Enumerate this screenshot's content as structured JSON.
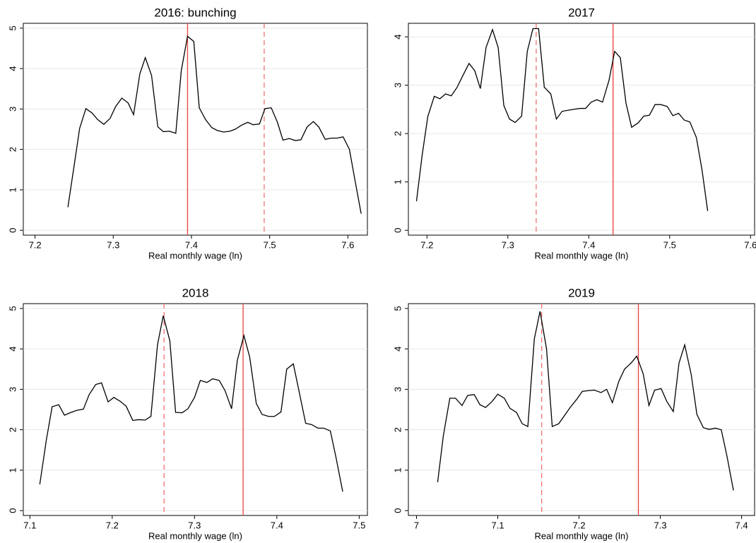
{
  "chart_data": [
    {
      "type": "line",
      "title": "2016: bunching",
      "x_label": "Real monthly wage (ln)",
      "xlim": [
        7.185,
        7.625
      ],
      "xticks": [
        7.2,
        7.3,
        7.4,
        7.5,
        7.6
      ],
      "ylim": [
        -0.12,
        5.12
      ],
      "yticks": [
        0,
        1,
        2,
        3,
        4,
        5
      ],
      "grid": true,
      "series": [
        {
          "color": "#000000",
          "x": [
            7.242,
            7.25,
            7.257,
            7.265,
            7.273,
            7.28,
            7.288,
            7.296,
            7.303,
            7.311,
            7.319,
            7.326,
            7.334,
            7.341,
            7.349,
            7.357,
            7.364,
            7.372,
            7.38,
            7.387,
            7.395,
            7.403,
            7.41,
            7.418,
            7.426,
            7.433,
            7.441,
            7.449,
            7.456,
            7.464,
            7.472,
            7.479,
            7.487,
            7.494,
            7.502,
            7.51,
            7.517,
            7.525,
            7.533,
            7.54,
            7.548,
            7.556,
            7.563,
            7.571,
            7.579,
            7.586,
            7.594,
            7.602,
            7.609,
            7.617
          ],
          "values": [
            0.57,
            1.6,
            2.52,
            3.01,
            2.9,
            2.74,
            2.62,
            2.77,
            3.06,
            3.27,
            3.15,
            2.86,
            3.87,
            4.27,
            3.83,
            2.56,
            2.44,
            2.45,
            2.4,
            3.95,
            4.8,
            4.67,
            3.03,
            2.74,
            2.54,
            2.47,
            2.43,
            2.45,
            2.5,
            2.6,
            2.67,
            2.61,
            2.63,
            3.01,
            3.03,
            2.67,
            2.23,
            2.27,
            2.22,
            2.24,
            2.56,
            2.69,
            2.55,
            2.25,
            2.28,
            2.28,
            2.31,
            2.0,
            1.25,
            0.41
          ]
        }
      ],
      "vlines": [
        {
          "x": 7.395,
          "style": "solid",
          "color": "#e8413c"
        },
        {
          "x": 7.493,
          "style": "dashed",
          "color": "#f07070"
        }
      ]
    },
    {
      "type": "line",
      "title": "2017",
      "x_label": "Real monthly wage (ln)",
      "xlim": [
        7.177,
        7.605
      ],
      "xticks": [
        7.2,
        7.3,
        7.4,
        7.5,
        7.6
      ],
      "ylim": [
        -0.1,
        4.28
      ],
      "yticks": [
        0,
        1,
        2,
        3,
        4
      ],
      "grid": true,
      "series": [
        {
          "color": "#000000",
          "x": [
            7.187,
            7.194,
            7.201,
            7.209,
            7.216,
            7.223,
            7.23,
            7.237,
            7.245,
            7.252,
            7.259,
            7.266,
            7.273,
            7.281,
            7.288,
            7.295,
            7.302,
            7.309,
            7.317,
            7.324,
            7.331,
            7.338,
            7.345,
            7.353,
            7.36,
            7.367,
            7.374,
            7.381,
            7.389,
            7.396,
            7.403,
            7.41,
            7.417,
            7.425,
            7.432,
            7.439,
            7.446,
            7.453,
            7.461,
            7.468,
            7.475,
            7.482,
            7.489,
            7.497,
            7.504,
            7.511,
            7.518,
            7.525,
            7.533,
            7.54,
            7.547
          ],
          "values": [
            0.6,
            1.55,
            2.35,
            2.77,
            2.72,
            2.82,
            2.78,
            2.95,
            3.22,
            3.45,
            3.3,
            2.93,
            3.78,
            4.15,
            3.78,
            2.58,
            2.3,
            2.23,
            2.36,
            3.7,
            4.17,
            4.17,
            2.96,
            2.82,
            2.3,
            2.46,
            2.48,
            2.5,
            2.52,
            2.52,
            2.65,
            2.7,
            2.65,
            3.1,
            3.7,
            3.57,
            2.63,
            2.13,
            2.22,
            2.36,
            2.38,
            2.6,
            2.6,
            2.56,
            2.37,
            2.42,
            2.28,
            2.24,
            1.92,
            1.25,
            0.4
          ]
        }
      ],
      "vlines": [
        {
          "x": 7.335,
          "style": "dashed",
          "color": "#f07070"
        },
        {
          "x": 7.43,
          "style": "solid",
          "color": "#e8413c"
        }
      ]
    },
    {
      "type": "line",
      "title": "2018",
      "x_label": "Real monthly wage (ln)",
      "xlim": [
        7.092,
        7.51
      ],
      "xticks": [
        7.1,
        7.2,
        7.3,
        7.4,
        7.5
      ],
      "ylim": [
        -0.12,
        5.12
      ],
      "yticks": [
        0,
        1,
        2,
        3,
        4,
        5
      ],
      "grid": true,
      "series": [
        {
          "color": "#000000",
          "x": [
            7.112,
            7.12,
            7.127,
            7.135,
            7.142,
            7.15,
            7.157,
            7.165,
            7.172,
            7.18,
            7.187,
            7.195,
            7.202,
            7.21,
            7.217,
            7.225,
            7.232,
            7.24,
            7.247,
            7.255,
            7.262,
            7.27,
            7.277,
            7.285,
            7.292,
            7.3,
            7.307,
            7.315,
            7.322,
            7.33,
            7.337,
            7.345,
            7.352,
            7.36,
            7.367,
            7.375,
            7.382,
            7.39,
            7.397,
            7.405,
            7.412,
            7.42,
            7.427,
            7.435,
            7.442,
            7.45,
            7.457,
            7.465,
            7.472,
            7.48
          ],
          "values": [
            0.65,
            1.75,
            2.57,
            2.62,
            2.36,
            2.43,
            2.48,
            2.51,
            2.87,
            3.12,
            3.16,
            2.69,
            2.8,
            2.7,
            2.58,
            2.23,
            2.25,
            2.24,
            2.33,
            4.1,
            4.82,
            4.2,
            2.43,
            2.42,
            2.52,
            2.8,
            3.22,
            3.17,
            3.26,
            3.22,
            2.97,
            2.52,
            3.72,
            4.33,
            3.8,
            2.65,
            2.38,
            2.33,
            2.33,
            2.44,
            3.5,
            3.63,
            2.95,
            2.16,
            2.13,
            2.04,
            2.04,
            1.97,
            1.3,
            0.47
          ]
        }
      ],
      "vlines": [
        {
          "x": 7.263,
          "style": "dashed",
          "color": "#f07070"
        },
        {
          "x": 7.359,
          "style": "solid",
          "color": "#e8413c"
        }
      ]
    },
    {
      "type": "line",
      "title": "2019",
      "x_label": "Real monthly wage (ln)",
      "xlim": [
        6.99,
        7.416
      ],
      "xticks": [
        7,
        7.1,
        7.2,
        7.3,
        7.4
      ],
      "ylim": [
        -0.12,
        5.12
      ],
      "yticks": [
        0,
        1,
        2,
        3,
        4,
        5
      ],
      "grid": true,
      "series": [
        {
          "color": "#000000",
          "x": [
            7.026,
            7.033,
            7.041,
            7.048,
            7.056,
            7.063,
            7.071,
            7.078,
            7.085,
            7.093,
            7.1,
            7.108,
            7.115,
            7.123,
            7.13,
            7.137,
            7.145,
            7.152,
            7.16,
            7.167,
            7.175,
            7.182,
            7.189,
            7.197,
            7.204,
            7.212,
            7.219,
            7.227,
            7.234,
            7.241,
            7.249,
            7.256,
            7.264,
            7.271,
            7.279,
            7.286,
            7.293,
            7.301,
            7.308,
            7.316,
            7.323,
            7.33,
            7.338,
            7.345,
            7.353,
            7.36,
            7.368,
            7.375,
            7.382,
            7.39
          ],
          "values": [
            0.7,
            1.85,
            2.78,
            2.78,
            2.6,
            2.85,
            2.87,
            2.62,
            2.55,
            2.7,
            2.88,
            2.78,
            2.53,
            2.43,
            2.15,
            2.08,
            4.25,
            4.93,
            4.0,
            2.08,
            2.15,
            2.35,
            2.55,
            2.75,
            2.95,
            2.97,
            2.98,
            2.92,
            3.0,
            2.67,
            3.2,
            3.5,
            3.65,
            3.82,
            3.38,
            2.6,
            2.98,
            3.02,
            2.7,
            2.45,
            3.65,
            4.1,
            3.37,
            2.38,
            2.05,
            2.01,
            2.04,
            2.0,
            1.35,
            0.5
          ]
        }
      ],
      "vlines": [
        {
          "x": 7.154,
          "style": "dashed",
          "color": "#f07070"
        },
        {
          "x": 7.273,
          "style": "solid",
          "color": "#e8413c"
        }
      ]
    }
  ]
}
